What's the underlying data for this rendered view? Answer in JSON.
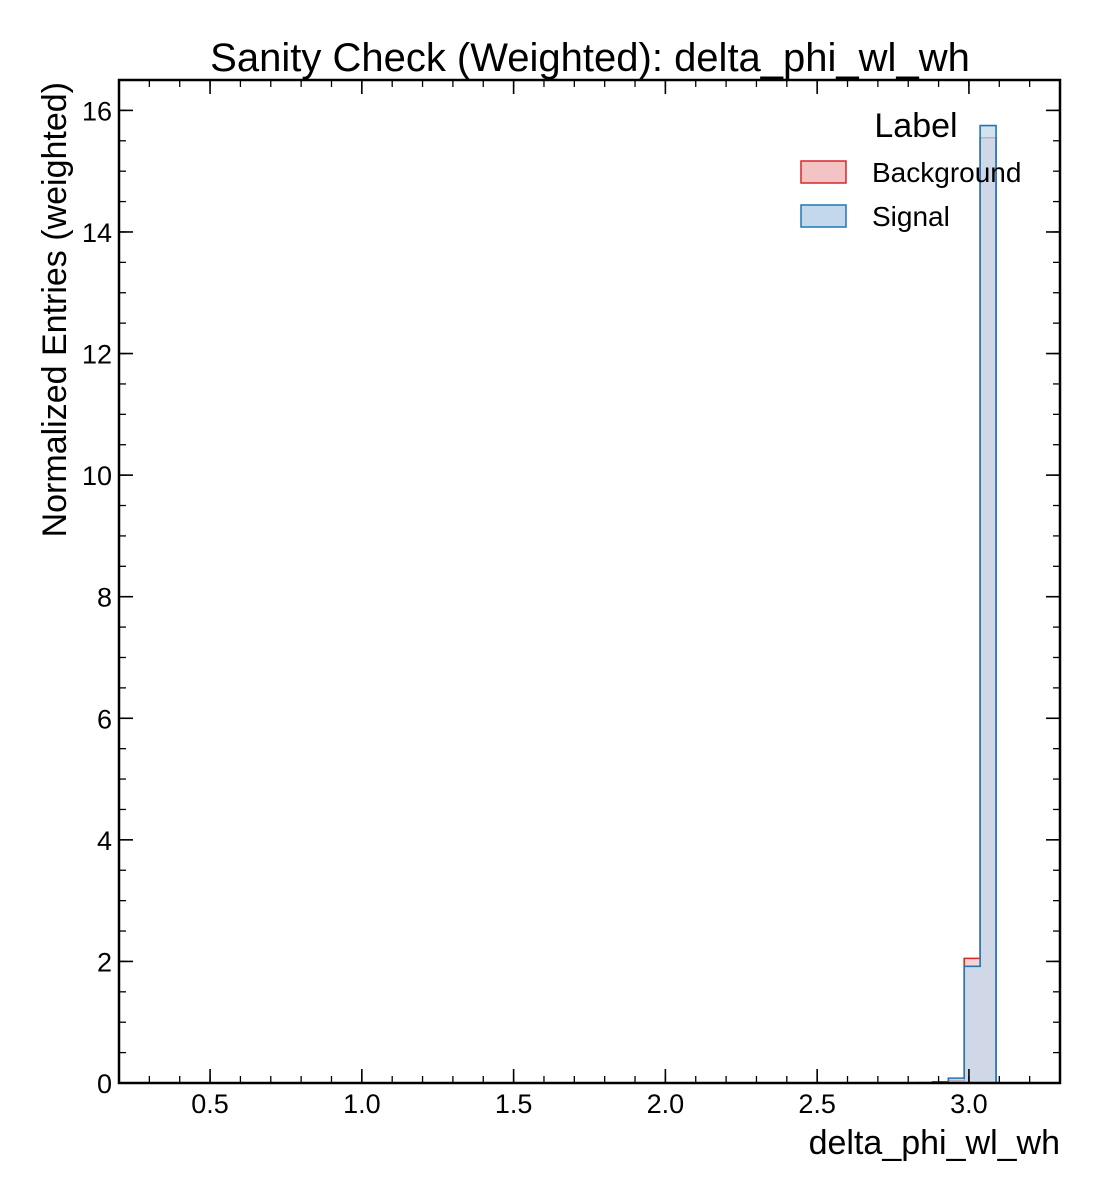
{
  "chart_data": {
    "type": "histogram",
    "title": "Sanity Check (Weighted): delta_phi_wl_wh",
    "xlabel": "delta_phi_wl_wh",
    "ylabel": "Normalized Entries (weighted)",
    "xlim": [
      0.2,
      3.3
    ],
    "ylim": [
      0,
      16.5
    ],
    "xticks": [
      0.5,
      1.0,
      1.5,
      2.0,
      2.5,
      3.0
    ],
    "xtick_labels": [
      "0.5",
      "1.0",
      "1.5",
      "2.0",
      "2.5",
      "3.0"
    ],
    "yticks": [
      0,
      2,
      4,
      6,
      8,
      10,
      12,
      14,
      16
    ],
    "ytick_labels": [
      "0",
      "2",
      "4",
      "6",
      "8",
      "10",
      "12",
      "14",
      "16"
    ],
    "grid": false,
    "legend": {
      "title": "Label",
      "placement": "top-right"
    },
    "bin_edges": [
      2.8274,
      2.8798,
      2.9322,
      2.9845,
      3.0369,
      3.0893,
      3.1416
    ],
    "series": [
      {
        "name": "Background",
        "color": "#d62728",
        "fill": "#f4c4c4",
        "values": [
          0.005,
          0.02,
          0.04,
          2.05,
          15.55,
          0
        ]
      },
      {
        "name": "Signal",
        "color": "#1f77b4",
        "fill": "#c3d8ec",
        "values": [
          0,
          0.005,
          0.08,
          1.92,
          15.75,
          0
        ]
      }
    ]
  }
}
